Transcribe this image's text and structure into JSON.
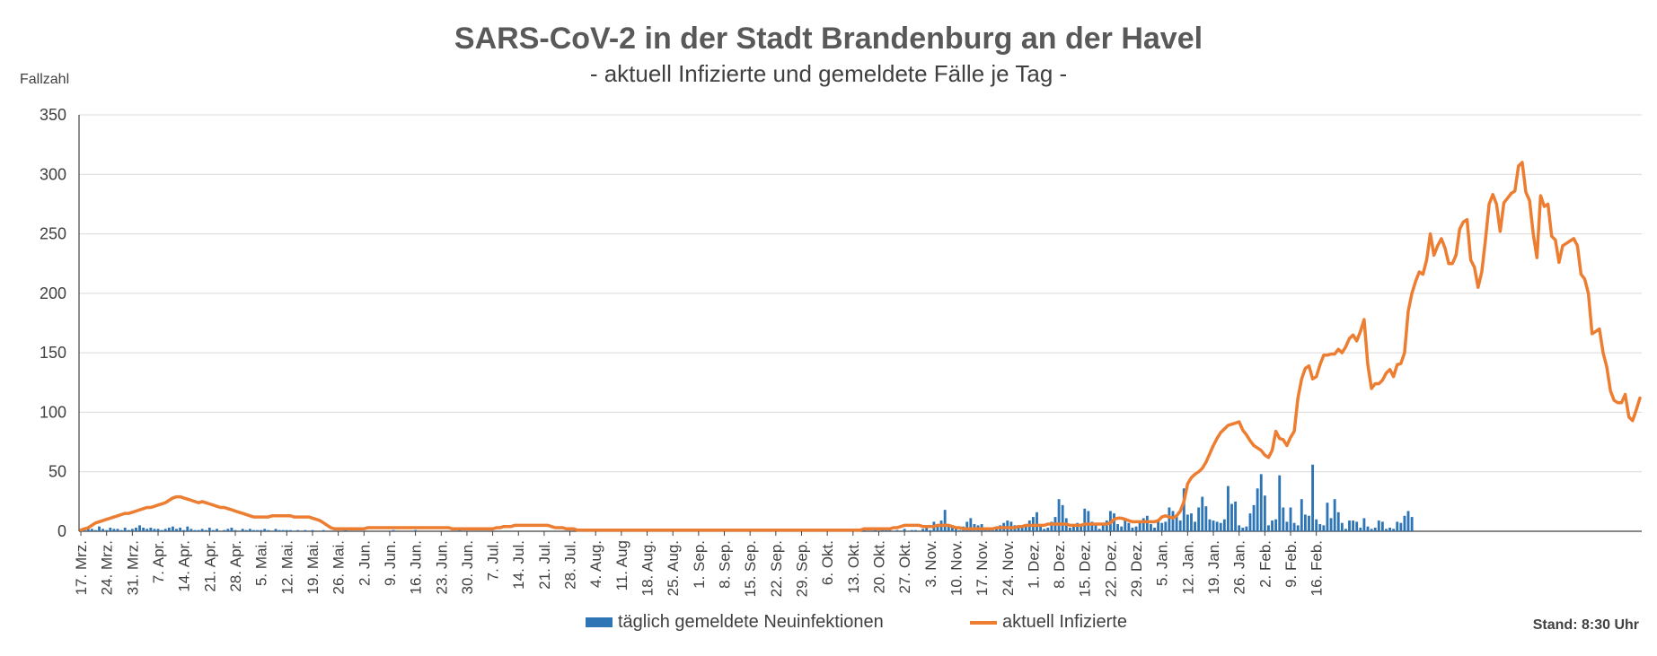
{
  "chart_data": {
    "type": "bar+line",
    "title": "SARS-CoV-2 in der Stadt Brandenburg an der Havel",
    "subtitle": "- aktuell Infizierte und gemeldete Fälle je Tag -",
    "ylabel": "Fallzahl",
    "ylim": [
      0,
      350
    ],
    "yticks": [
      0,
      50,
      100,
      150,
      200,
      250,
      300,
      350
    ],
    "grid": true,
    "legend_position": "bottom",
    "x_tick_labels": [
      "17. Mrz.",
      "24. Mrz.",
      "31. Mrz.",
      "7. Apr.",
      "14. Apr.",
      "21. Apr.",
      "28. Apr.",
      "5. Mai.",
      "12. Mai.",
      "19. Mai.",
      "26. Mai.",
      "2. Jun.",
      "9. Jun.",
      "16. Jun.",
      "23. Jun.",
      "30. Jun.",
      "7. Jul.",
      "14. Jul.",
      "21. Jul.",
      "28. Jul.",
      "4. Aug.",
      "11. Aug",
      "18. Aug.",
      "25. Aug.",
      "1. Sep.",
      "8. Sep.",
      "15. Sep.",
      "22. Sep.",
      "29. Sep.",
      "6. Okt.",
      "13. Okt.",
      "20. Okt.",
      "27. Okt.",
      "3. Nov.",
      "10. Nov.",
      "17. Nov.",
      "24. Nov.",
      "1. Dez.",
      "8. Dez.",
      "15. Dez.",
      "22. Dez.",
      "29. Dez.",
      "5. Jan.",
      "12. Jan.",
      "19. Jan.",
      "26. Jan.",
      "2. Feb.",
      "9. Feb.",
      "16. Feb."
    ],
    "series": [
      {
        "name": "täglich gemeldete Neuinfektionen",
        "type": "bar",
        "color": "#2e75b6",
        "values": [
          2,
          1,
          3,
          2,
          1,
          4,
          2,
          1,
          3,
          2,
          2,
          1,
          3,
          1,
          2,
          3,
          5,
          3,
          2,
          3,
          2,
          2,
          1,
          2,
          3,
          4,
          2,
          3,
          1,
          4,
          2,
          1,
          1,
          2,
          1,
          3,
          1,
          2,
          0,
          1,
          2,
          3,
          1,
          0,
          2,
          1,
          2,
          1,
          1,
          1,
          2,
          1,
          0,
          2,
          1,
          1,
          1,
          1,
          0,
          1,
          0,
          1,
          0,
          1,
          0,
          0,
          1,
          0,
          0,
          0,
          0,
          0,
          1,
          0,
          0,
          0,
          0,
          0,
          0,
          0,
          0,
          0,
          0,
          0,
          0,
          1,
          0,
          0,
          0,
          0,
          0,
          1,
          0,
          0,
          0,
          0,
          0,
          0,
          0,
          0,
          0,
          0,
          0,
          1,
          0,
          0,
          0,
          0,
          0,
          0,
          0,
          0,
          0,
          0,
          0,
          0,
          0,
          0,
          0,
          0,
          0,
          0,
          0,
          0,
          0,
          0,
          0,
          0,
          0,
          0,
          0,
          0,
          0,
          0,
          0,
          0,
          0,
          0,
          0,
          0,
          0,
          0,
          0,
          0,
          0,
          0,
          0,
          0,
          0,
          0,
          0,
          0,
          0,
          0,
          0,
          0,
          0,
          0,
          0,
          0,
          0,
          0,
          0,
          0,
          0,
          0,
          0,
          0,
          0,
          1,
          0,
          0,
          1,
          0,
          1,
          0,
          1,
          2,
          1,
          0,
          1,
          0,
          0,
          1,
          0,
          1,
          0,
          0,
          0,
          1,
          0,
          0,
          0,
          1,
          0,
          1,
          0,
          0,
          0,
          1,
          0,
          1,
          0,
          1,
          0,
          0,
          0,
          1,
          0,
          2,
          0,
          1,
          0,
          1,
          0,
          0,
          1,
          0,
          1,
          2,
          1,
          0,
          1,
          0,
          2,
          0,
          1,
          1,
          0,
          2,
          5,
          1,
          8,
          6,
          9,
          18,
          6,
          4,
          3,
          1,
          4,
          8,
          11,
          6,
          5,
          6,
          3,
          2,
          1,
          3,
          5,
          7,
          9,
          8,
          5,
          4,
          3,
          6,
          9,
          12,
          16,
          4,
          2,
          3,
          8,
          12,
          27,
          22,
          11,
          3,
          5,
          7,
          6,
          19,
          17,
          8,
          5,
          2,
          6,
          9,
          17,
          15,
          6,
          4,
          10,
          7,
          3,
          4,
          8,
          11,
          13,
          6,
          3,
          9,
          7,
          8,
          20,
          17,
          14,
          9,
          36,
          14,
          15,
          8,
          20,
          29,
          21,
          10,
          9,
          8,
          7,
          10,
          38,
          23,
          25,
          5,
          3,
          4,
          15,
          22,
          36,
          48,
          30,
          5,
          9,
          10,
          47,
          20,
          8,
          20,
          7,
          5,
          27,
          14,
          13,
          56,
          10,
          6,
          5,
          24,
          11,
          27,
          16,
          7,
          2,
          9,
          9,
          8,
          3,
          11,
          4,
          2,
          3,
          9,
          8,
          2,
          3,
          2,
          8,
          7,
          13,
          17,
          12
        ]
      },
      {
        "name": "aktuell Infizierte",
        "type": "line",
        "color": "#ed7d31",
        "values": [
          1,
          2,
          3,
          5,
          7,
          8,
          9,
          10,
          11,
          12,
          13,
          14,
          15,
          15,
          16,
          17,
          18,
          19,
          20,
          20,
          21,
          22,
          23,
          24,
          26,
          28,
          29,
          29,
          28,
          27,
          26,
          25,
          24,
          25,
          24,
          23,
          22,
          21,
          20,
          20,
          19,
          18,
          17,
          16,
          15,
          14,
          13,
          12,
          12,
          12,
          12,
          12,
          13,
          13,
          13,
          13,
          13,
          13,
          12,
          12,
          12,
          12,
          12,
          11,
          10,
          9,
          7,
          5,
          3,
          2,
          2,
          2,
          2,
          2,
          2,
          2,
          2,
          2,
          3,
          3,
          3,
          3,
          3,
          3,
          3,
          3,
          3,
          3,
          3,
          3,
          3,
          3,
          3,
          3,
          3,
          3,
          3,
          3,
          3,
          3,
          3,
          2,
          2,
          2,
          2,
          2,
          2,
          2,
          2,
          2,
          2,
          2,
          2,
          3,
          3,
          4,
          4,
          4,
          5,
          5,
          5,
          5,
          5,
          5,
          5,
          5,
          5,
          5,
          4,
          3,
          3,
          3,
          2,
          2,
          2,
          1,
          1,
          1,
          1,
          1,
          1,
          1,
          1,
          1,
          1,
          1,
          1,
          1,
          1,
          1,
          1,
          1,
          1,
          1,
          1,
          1,
          1,
          1,
          1,
          1,
          1,
          1,
          1,
          1,
          1,
          1,
          1,
          1,
          1,
          1,
          1,
          1,
          1,
          1,
          1,
          1,
          1,
          1,
          1,
          1,
          1,
          1,
          1,
          1,
          1,
          1,
          1,
          1,
          1,
          1,
          1,
          1,
          1,
          1,
          1,
          1,
          1,
          1,
          1,
          1,
          1,
          1,
          1,
          1,
          1,
          1,
          1,
          1,
          1,
          1,
          1,
          1,
          1,
          2,
          2,
          2,
          2,
          2,
          2,
          2,
          2,
          3,
          3,
          4,
          5,
          5,
          5,
          5,
          5,
          4,
          4,
          4,
          4,
          5,
          5,
          5,
          5,
          4,
          3,
          3,
          2,
          2,
          2,
          2,
          2,
          2,
          2,
          2,
          2,
          3,
          3,
          3,
          3,
          3,
          3,
          4,
          4,
          5,
          5,
          5,
          5,
          5,
          5,
          6,
          6,
          6,
          6,
          6,
          6,
          5,
          5,
          5,
          5,
          6,
          6,
          6,
          6,
          6,
          6,
          6,
          7,
          10,
          11,
          11,
          10,
          9,
          8,
          8,
          8,
          8,
          8,
          8,
          8,
          9,
          12,
          13,
          12,
          11,
          13,
          17,
          25,
          40,
          45,
          48,
          50,
          53,
          58,
          65,
          72,
          78,
          83,
          86,
          89,
          90,
          91,
          92,
          85,
          81,
          76,
          72,
          70,
          68,
          64,
          62,
          68,
          84,
          78,
          77,
          72,
          79,
          84,
          112,
          128,
          137,
          139,
          128,
          130,
          140,
          148,
          148,
          149,
          149,
          153,
          150,
          155,
          162,
          165,
          160,
          168,
          178,
          140,
          120,
          124,
          124,
          127,
          133,
          136,
          130,
          140,
          141,
          150,
          185,
          200,
          210,
          218,
          216,
          228,
          250,
          232,
          240,
          246,
          238,
          225,
          225,
          232,
          254,
          260,
          262,
          228,
          222,
          205,
          218,
          245,
          275,
          283,
          275,
          252,
          276,
          280,
          284,
          286,
          307,
          310,
          285,
          278,
          250,
          230,
          282,
          273,
          275,
          248,
          245,
          226,
          240,
          242,
          244,
          246,
          240,
          216,
          212,
          200,
          166,
          168,
          170,
          150,
          138,
          118,
          110,
          108,
          108,
          115,
          96,
          93,
          102,
          112
        ]
      }
    ]
  },
  "stand": "Stand: 8:30 Uhr"
}
